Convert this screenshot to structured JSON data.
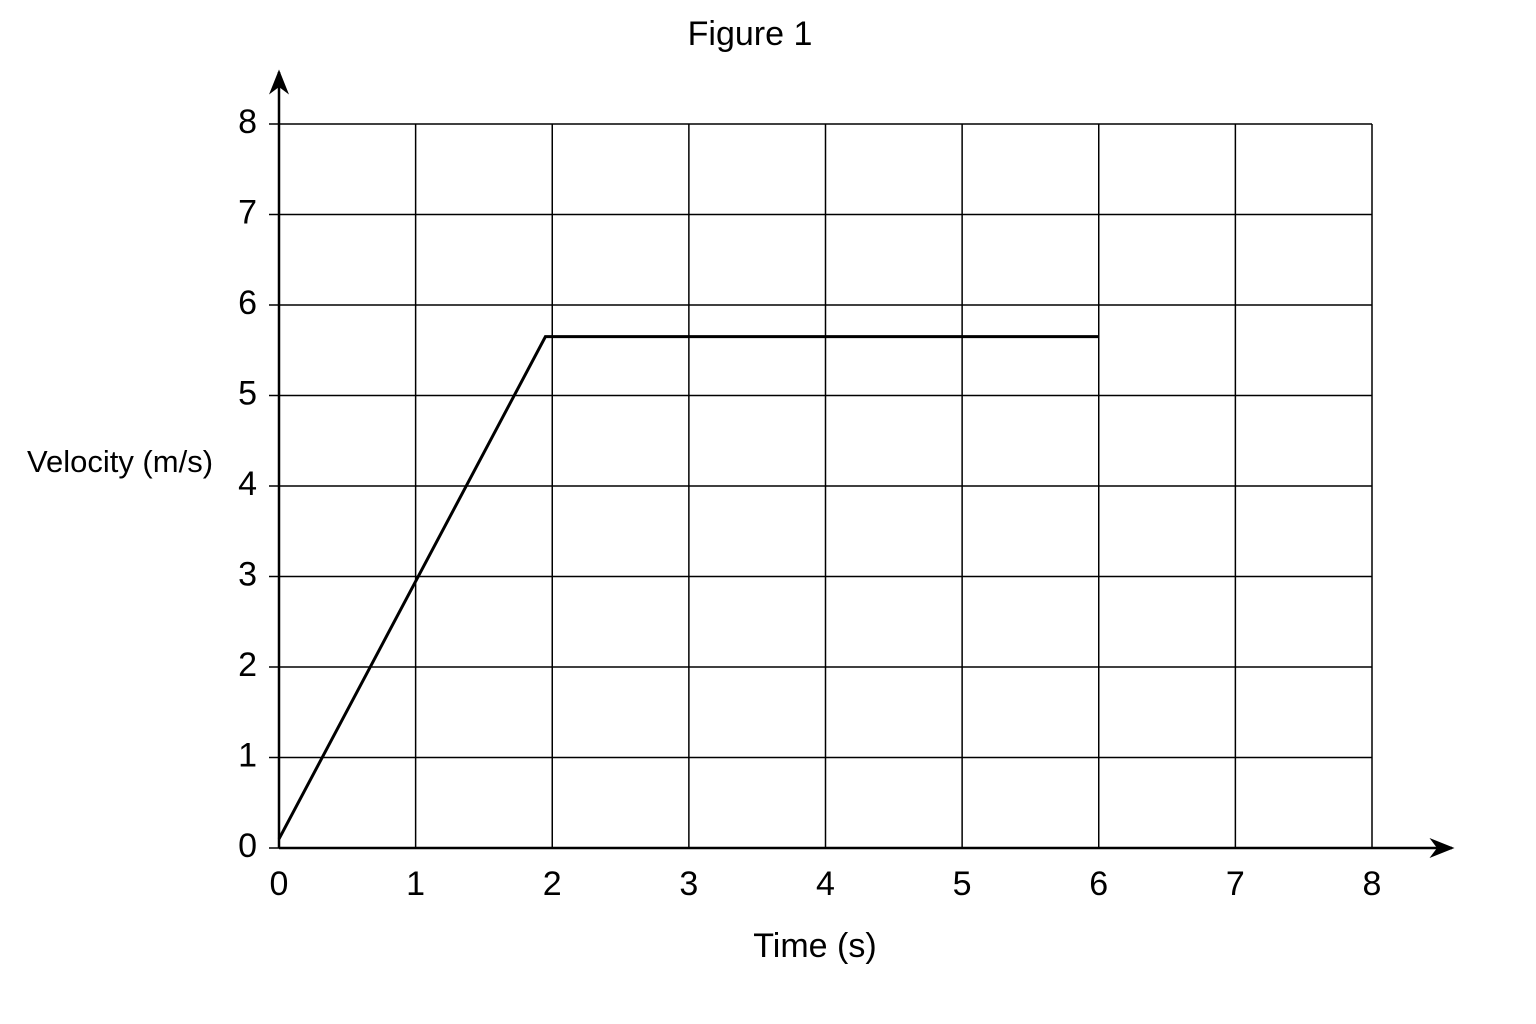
{
  "chart_data": {
    "type": "line",
    "title": "Figure 1",
    "xlabel": "Time (s)",
    "ylabel": "Velocity (m/s)",
    "x": [
      0,
      1.95,
      6
    ],
    "series": [
      {
        "color": "#000000",
        "values": [
          0.1,
          5.65,
          5.65
        ]
      }
    ],
    "xlim": [
      0,
      8
    ],
    "ylim": [
      0,
      8
    ],
    "xticks": [
      0,
      1,
      2,
      3,
      4,
      5,
      6,
      7,
      8
    ],
    "yticks": [
      0,
      1,
      2,
      3,
      4,
      5,
      6,
      7,
      8
    ],
    "grid": true
  }
}
